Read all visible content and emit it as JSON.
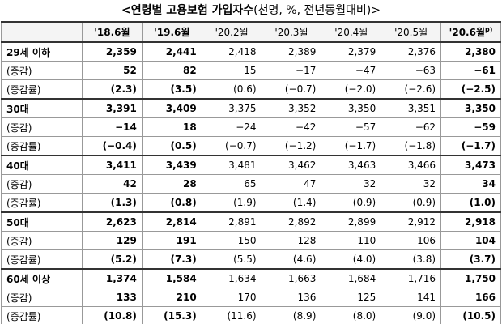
{
  "title": {
    "main": "<연령별 고용보험 가입자수",
    "unit": "(천명, %, 전년동월대비)>"
  },
  "table": {
    "header": [
      "'18.6월",
      "'19.6월",
      "'20.2월",
      "'20.3월",
      "'20.4월",
      "'20.5월",
      "'20.6월"
    ],
    "header_note": "p)",
    "rows": [
      {
        "label": "29세 이하",
        "cells": [
          "2,359",
          "2,441",
          "2,418",
          "2,389",
          "2,379",
          "2,376",
          "2,380"
        ]
      },
      {
        "label": "(증감)",
        "cells": [
          "52",
          "82",
          "15",
          "−17",
          "−47",
          "−63",
          "−61"
        ]
      },
      {
        "label": "(증감률)",
        "cells": [
          "(2.3)",
          "(3.5)",
          "(0.6)",
          "(−0.7)",
          "(−2.0)",
          "(−2.6)",
          "(−2.5)"
        ]
      },
      {
        "label": "30대",
        "cells": [
          "3,391",
          "3,409",
          "3,375",
          "3,352",
          "3,350",
          "3,351",
          "3,350"
        ]
      },
      {
        "label": "(증감)",
        "cells": [
          "−14",
          "18",
          "−24",
          "−42",
          "−57",
          "−62",
          "−59"
        ]
      },
      {
        "label": "(증감률)",
        "cells": [
          "(−0.4)",
          "(0.5)",
          "(−0.7)",
          "(−1.2)",
          "(−1.7)",
          "(−1.8)",
          "(−1.7)"
        ]
      },
      {
        "label": "40대",
        "cells": [
          "3,411",
          "3,439",
          "3,481",
          "3,462",
          "3,463",
          "3,466",
          "3,473"
        ]
      },
      {
        "label": "(증감)",
        "cells": [
          "42",
          "28",
          "65",
          "47",
          "32",
          "32",
          "34"
        ]
      },
      {
        "label": "(증감률)",
        "cells": [
          "(1.3)",
          "(0.8)",
          "(1.9)",
          "(1.4)",
          "(0.9)",
          "(0.9)",
          "(1.0)"
        ]
      },
      {
        "label": "50대",
        "cells": [
          "2,623",
          "2,814",
          "2,891",
          "2,892",
          "2,899",
          "2,912",
          "2,918"
        ]
      },
      {
        "label": "(증감)",
        "cells": [
          "129",
          "191",
          "150",
          "128",
          "110",
          "106",
          "104"
        ]
      },
      {
        "label": "(증감률)",
        "cells": [
          "(5.2)",
          "(7.3)",
          "(5.5)",
          "(4.6)",
          "(4.0)",
          "(3.8)",
          "(3.7)"
        ]
      },
      {
        "label": "60세 이상",
        "cells": [
          "1,374",
          "1,584",
          "1,634",
          "1,663",
          "1,684",
          "1,716",
          "1,750"
        ]
      },
      {
        "label": "(증감)",
        "cells": [
          "133",
          "210",
          "170",
          "136",
          "125",
          "141",
          "166"
        ]
      },
      {
        "label": "(증감률)",
        "cells": [
          "(10.8)",
          "(15.3)",
          "(11.6)",
          "(8.9)",
          "(8.0)",
          "(9.0)",
          "(10.5)"
        ]
      }
    ]
  }
}
